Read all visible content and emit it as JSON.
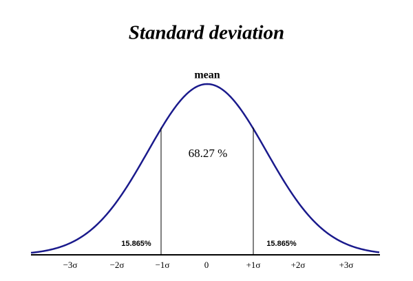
{
  "title": "Standard deviation",
  "curve_label": "mean",
  "center_label": "68.27 %",
  "tail_labels": [
    "15.865%",
    "15.865%"
  ],
  "axis_labels": [
    "−3σ",
    "−2σ",
    "−1σ",
    "0",
    "+1σ",
    "+2σ",
    "+3σ"
  ]
}
